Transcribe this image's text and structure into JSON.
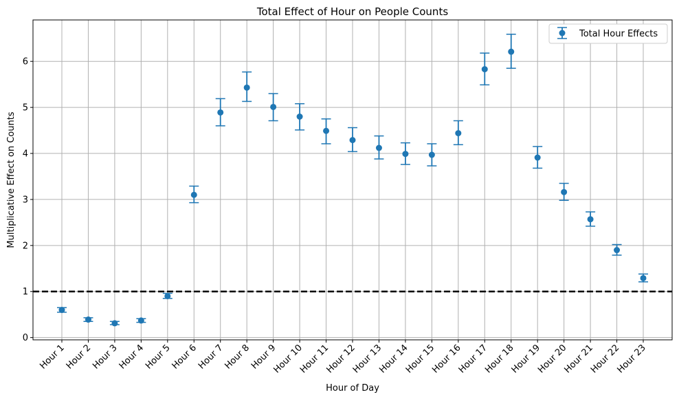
{
  "chart_data": {
    "type": "scatter",
    "title": "Total Effect of Hour on People Counts",
    "xlabel": "Hour of Day",
    "ylabel": "Multiplicative Effect on Counts",
    "ylim": [
      -0.05,
      6.9
    ],
    "yticks": [
      0,
      1,
      2,
      3,
      4,
      5,
      6
    ],
    "grid": true,
    "legend_position": "top-right",
    "reference_line": {
      "y": 1,
      "style": "dashed",
      "color": "#000000"
    },
    "categories": [
      "Hour 1",
      "Hour 2",
      "Hour 3",
      "Hour 4",
      "Hour 5",
      "Hour 6",
      "Hour 7",
      "Hour 8",
      "Hour 9",
      "Hour 10",
      "Hour 11",
      "Hour 12",
      "Hour 13",
      "Hour 14",
      "Hour 15",
      "Hour 16",
      "Hour 17",
      "Hour 18",
      "Hour 19",
      "Hour 20",
      "Hour 21",
      "Hour 22",
      "Hour 23"
    ],
    "series": [
      {
        "name": "Total Hour Effects",
        "color": "#1f77b4",
        "values": [
          0.6,
          0.39,
          0.31,
          0.37,
          0.9,
          3.1,
          4.89,
          5.43,
          5.01,
          4.8,
          4.49,
          4.29,
          4.12,
          3.99,
          3.97,
          4.44,
          5.83,
          6.21,
          3.91,
          3.16,
          2.57,
          1.9,
          1.29
        ],
        "lower": [
          0.55,
          0.35,
          0.28,
          0.33,
          0.85,
          2.93,
          4.6,
          5.13,
          4.71,
          4.51,
          4.21,
          4.04,
          3.88,
          3.76,
          3.73,
          4.19,
          5.49,
          5.85,
          3.68,
          2.98,
          2.42,
          1.79,
          1.21
        ],
        "upper": [
          0.65,
          0.43,
          0.35,
          0.41,
          0.96,
          3.29,
          5.19,
          5.77,
          5.3,
          5.08,
          4.75,
          4.56,
          4.38,
          4.23,
          4.21,
          4.71,
          6.18,
          6.59,
          4.15,
          3.35,
          2.73,
          2.02,
          1.38
        ]
      }
    ]
  }
}
